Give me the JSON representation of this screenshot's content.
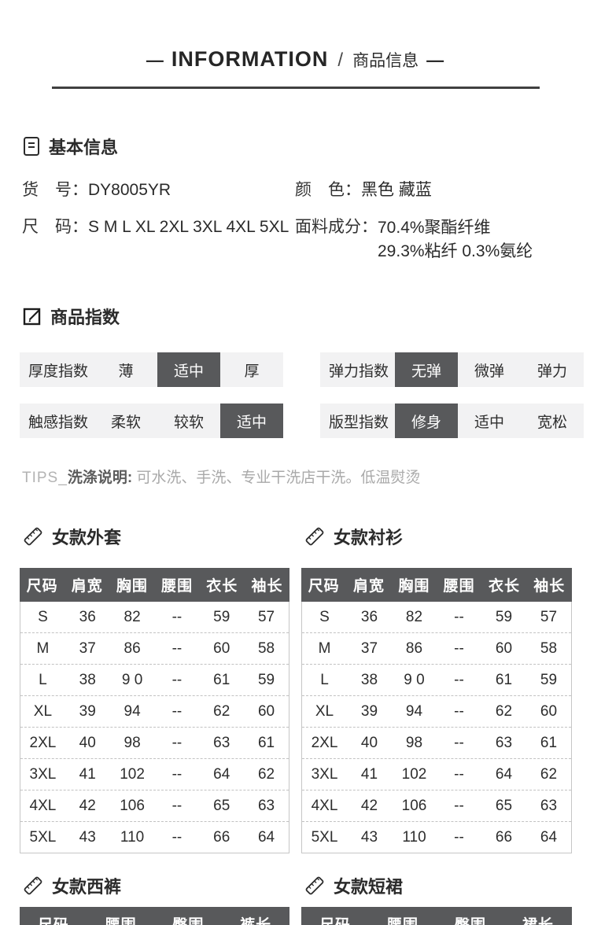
{
  "header": {
    "dash_left": "—",
    "title": "INFORMATION",
    "separator": "/",
    "subtitle": "商品信息",
    "dash_right": "—"
  },
  "basic_info": {
    "icon": "document-icon",
    "section_title": "基本信息",
    "fields": [
      {
        "label": "货　号：",
        "value": "DY8005YR"
      },
      {
        "label": "尺　码：",
        "value": "S M L XL 2XL 3XL 4XL 5XL"
      },
      {
        "label": "颜　色：",
        "value": "黑色 藏蓝"
      },
      {
        "label": "面料成分：",
        "value_line1": "70.4%聚酯纤维",
        "value_line2": "29.3%粘纤 0.3%氨纶"
      }
    ]
  },
  "product_index": {
    "icon": "edit-icon",
    "section_title": "商品指数",
    "rows": [
      {
        "label": "厚度指数",
        "options": [
          "薄",
          "适中",
          "厚"
        ],
        "selected_index": 1
      },
      {
        "label": "弹力指数",
        "options": [
          "无弹",
          "微弹",
          "弹力"
        ],
        "selected_index": 0
      },
      {
        "label": "触感指数",
        "options": [
          "柔软",
          "较软",
          "适中"
        ],
        "selected_index": 2
      },
      {
        "label": "版型指数",
        "options": [
          "修身",
          "适中",
          "宽松"
        ],
        "selected_index": 0
      }
    ]
  },
  "tips": {
    "prefix": "TIPS_",
    "label": "洗涤说明:",
    "text": "可水洗、手洗、专业干洗店干洗。低温熨烫"
  },
  "size_tables": {
    "icon": "ruler-icon",
    "columns": [
      "尺码",
      "肩宽",
      "胸围",
      "腰围",
      "衣长",
      "袖长"
    ],
    "tables": [
      {
        "title": "女款外套",
        "rows": [
          [
            "S",
            "36",
            "82",
            "--",
            "59",
            "57"
          ],
          [
            "M",
            "37",
            "86",
            "--",
            "60",
            "58"
          ],
          [
            "L",
            "38",
            "9 0",
            "--",
            "61",
            "59"
          ],
          [
            "XL",
            "39",
            "94",
            "--",
            "62",
            "60"
          ],
          [
            "2XL",
            "40",
            "98",
            "--",
            "63",
            "61"
          ],
          [
            "3XL",
            "41",
            "102",
            "--",
            "64",
            "62"
          ],
          [
            "4XL",
            "42",
            "106",
            "--",
            "65",
            "63"
          ],
          [
            "5XL",
            "43",
            "110",
            "--",
            "66",
            "64"
          ]
        ]
      },
      {
        "title": "女款衬衫",
        "rows": [
          [
            "S",
            "36",
            "82",
            "--",
            "59",
            "57"
          ],
          [
            "M",
            "37",
            "86",
            "--",
            "60",
            "58"
          ],
          [
            "L",
            "38",
            "9 0",
            "--",
            "61",
            "59"
          ],
          [
            "XL",
            "39",
            "94",
            "--",
            "62",
            "60"
          ],
          [
            "2XL",
            "40",
            "98",
            "--",
            "63",
            "61"
          ],
          [
            "3XL",
            "41",
            "102",
            "--",
            "64",
            "62"
          ],
          [
            "4XL",
            "42",
            "106",
            "--",
            "65",
            "63"
          ],
          [
            "5XL",
            "43",
            "110",
            "--",
            "66",
            "64"
          ]
        ]
      }
    ]
  },
  "bottom_tables": [
    {
      "title": "女款西裤",
      "columns": [
        "尺码",
        "腰围",
        "臀围",
        "裤长"
      ]
    },
    {
      "title": "女款短裙",
      "columns": [
        "尺码",
        "腰围",
        "臀围",
        "裙长"
      ]
    }
  ],
  "colors": {
    "dark": "#58595b",
    "row_bg": "#f2f2f3",
    "rule": "#404040"
  }
}
